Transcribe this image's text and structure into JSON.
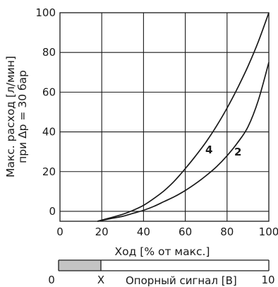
{
  "colors": {
    "line": "#1a1a1a",
    "grid": "#1a1a1a",
    "signal_fill": "#c4c4c4"
  },
  "chart_data": {
    "type": "line",
    "ylabel_line1": "Макс. расход [л/мин]",
    "ylabel_line2": "при Δp = 30 бар",
    "xlabel": "Ход [% от макс.]",
    "xlim": [
      0,
      100
    ],
    "ylim": [
      -5,
      100
    ],
    "xticks": [
      "0",
      "20",
      "40",
      "60",
      "80",
      "100"
    ],
    "yticks": [
      "0",
      "20",
      "40",
      "60",
      "80",
      "100"
    ],
    "grid": true,
    "series": [
      {
        "name": "4",
        "x": [
          18,
          25,
          30,
          35,
          40,
          45,
          50,
          55,
          60,
          65,
          70,
          75,
          80,
          85,
          90,
          95,
          100
        ],
        "y": [
          -5,
          -3,
          -1.5,
          0.5,
          3,
          6.5,
          10.5,
          15.5,
          21.5,
          28,
          35,
          43,
          52,
          62,
          73,
          85.5,
          100
        ]
      },
      {
        "name": "2",
        "x": [
          18,
          25,
          30,
          35,
          40,
          45,
          50,
          55,
          60,
          65,
          70,
          75,
          80,
          85,
          90,
          95,
          100
        ],
        "y": [
          -5,
          -3.5,
          -2.5,
          -1,
          0.5,
          2.5,
          5,
          7.5,
          10.5,
          14,
          18,
          22.5,
          28,
          34.5,
          42.5,
          56,
          75
        ]
      }
    ]
  },
  "signal_bar": {
    "label": "Опорный сигнал [В]",
    "start_label": "0",
    "marker_label": "X",
    "end_label": "10"
  }
}
